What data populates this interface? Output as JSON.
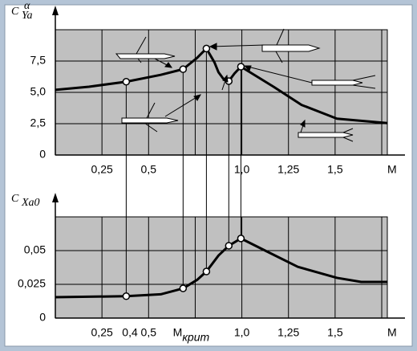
{
  "chart_data": [
    {
      "type": "line",
      "y_label": "C",
      "y_label_sub": "Ya",
      "y_label_sup": "α",
      "x_label": "M",
      "xlim": [
        0,
        1.78
      ],
      "ylim": [
        0,
        10
      ],
      "xticks": [
        {
          "value": 0.25,
          "label": "0,25"
        },
        {
          "value": 0.5,
          "label": "0,5"
        },
        {
          "value": 1.0,
          "label": "1,0"
        },
        {
          "value": 1.25,
          "label": "1,25"
        },
        {
          "value": 1.5,
          "label": "1,5"
        }
      ],
      "xgrid": [
        0.25,
        0.5,
        0.75,
        1.0,
        1.25,
        1.5,
        1.75
      ],
      "yticks": [
        0,
        {
          "value": 2.5,
          "label": "2,5"
        },
        {
          "value": 5.0,
          "label": "5,0"
        },
        {
          "value": 7.5,
          "label": "7,5"
        }
      ],
      "grid": true,
      "color": "#000000",
      "x": [
        0,
        0.18,
        0.38,
        0.565,
        0.685,
        0.76,
        0.81,
        0.853,
        0.875,
        0.9,
        0.93,
        0.96,
        0.995,
        1.17,
        1.32,
        1.51,
        1.78
      ],
      "values": [
        5.2,
        5.45,
        5.85,
        6.4,
        6.85,
        7.75,
        8.5,
        7.4,
        6.6,
        6.1,
        5.9,
        6.5,
        7.05,
        5.45,
        4.0,
        2.9,
        2.55
      ],
      "points": {
        "x": [
          0.38,
          0.685,
          0.81,
          0.93,
          0.995
        ],
        "values": [
          5.85,
          6.85,
          8.5,
          5.9,
          7.05
        ]
      }
    },
    {
      "type": "line",
      "y_label": "C",
      "y_label_sub": "Xa0",
      "x_label": "M",
      "xlim": [
        0,
        1.78
      ],
      "ylim": [
        0,
        0.075
      ],
      "xticks": [
        {
          "value": 0.25,
          "label": "0,25"
        },
        {
          "value": 0.4,
          "label": "0,4"
        },
        {
          "value": 0.5,
          "label": "0,5"
        },
        {
          "value": 0.685,
          "label": "M",
          "subscript": "крит"
        },
        {
          "value": 1.0,
          "label": "1,0"
        },
        {
          "value": 1.25,
          "label": "1,25"
        },
        {
          "value": 1.5,
          "label": "1,5"
        }
      ],
      "xgrid": [
        0.25,
        0.5,
        0.75,
        1.0,
        1.25,
        1.5,
        1.75
      ],
      "yticks": [
        0,
        {
          "value": 0.025,
          "label": "0,025"
        },
        {
          "value": 0.05,
          "label": "0,05"
        }
      ],
      "grid": true,
      "color": "#000000",
      "x": [
        0,
        0.38,
        0.565,
        0.685,
        0.76,
        0.81,
        0.875,
        0.93,
        0.995,
        1.125,
        1.3,
        1.51,
        1.64,
        1.78
      ],
      "values": [
        0.0155,
        0.0162,
        0.0176,
        0.022,
        0.0283,
        0.0345,
        0.0464,
        0.0536,
        0.059,
        0.05,
        0.038,
        0.0298,
        0.0268,
        0.0268
      ],
      "points": {
        "x": [
          0.38,
          0.685,
          0.81,
          0.93,
          0.995
        ],
        "values": [
          0.0162,
          0.022,
          0.0345,
          0.0536,
          0.059
        ]
      }
    }
  ]
}
